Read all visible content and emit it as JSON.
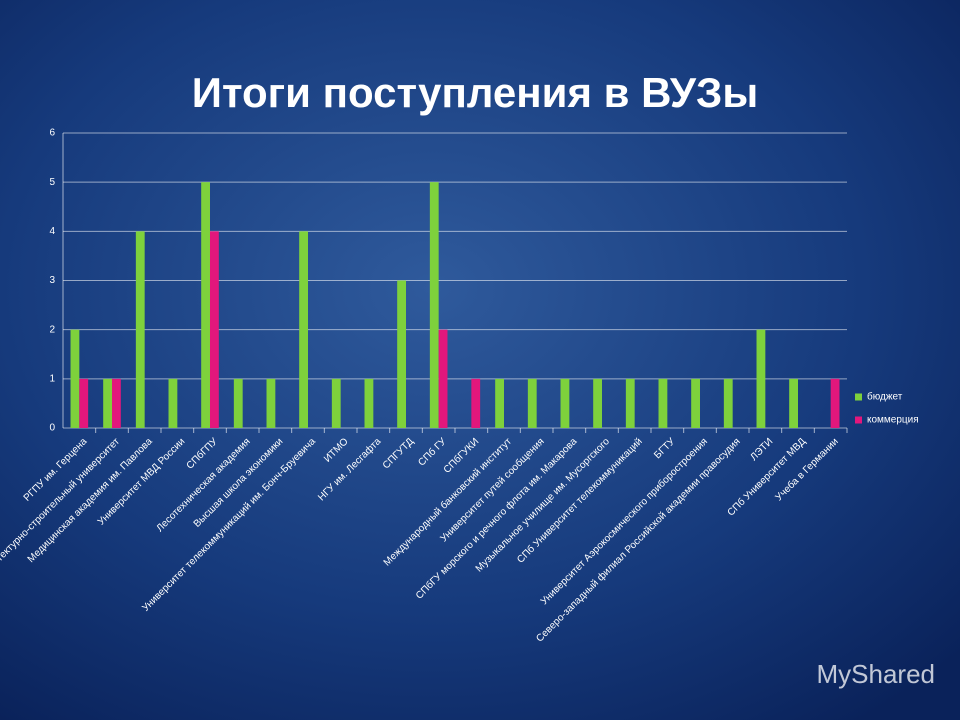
{
  "chart_data": {
    "type": "bar",
    "title": "Итоги поступления в ВУЗы",
    "categories": [
      "РГПУ им. Герцена",
      "Архитектурно-строительный университет",
      "Медицинская академия  им. Павлова",
      "Университет МВД России",
      "СПбГПУ",
      "Лесотехническая академия",
      "Высшая школа экономики",
      "Университет телекоммуникаций им. Бонч-Бруевича",
      "ИТМО",
      "НГУ им. Лесгафта",
      "СПГУТД",
      "СПб ГУ",
      "СПбГУКИ",
      "Международный банковский институт",
      "Университет путей сообщения",
      "СПбГУ морского и речного флота им. Макарова",
      "Музыкальное училище им. Мусоргского",
      "СПб Университет телекоммуникаций",
      "БГТУ",
      "Университет Аэрокосмического приборостроения",
      "Северо-западный филиал Российской академии правосудия",
      "ЛЭТИ",
      "СПб Университет МВД",
      "Учеба в Германии"
    ],
    "series": [
      {
        "name": "бюджет",
        "color": "#7ed13c",
        "values": [
          2,
          1,
          4,
          1,
          5,
          1,
          1,
          4,
          1,
          1,
          3,
          5,
          0,
          1,
          1,
          1,
          1,
          1,
          1,
          1,
          1,
          2,
          1,
          0
        ]
      },
      {
        "name": "коммерция",
        "color": "#e2177c",
        "values": [
          1,
          1,
          0,
          0,
          4,
          0,
          0,
          0,
          0,
          0,
          0,
          2,
          1,
          0,
          0,
          0,
          0,
          0,
          0,
          0,
          0,
          0,
          0,
          1
        ]
      }
    ],
    "ylim": [
      0,
      6
    ],
    "yticks": [
      0,
      1,
      2,
      3,
      4,
      5,
      6
    ],
    "grid": true,
    "legend": "right",
    "watermark": "MyShared"
  }
}
